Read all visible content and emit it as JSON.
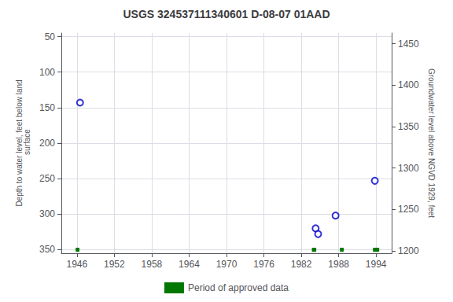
{
  "chart_data": {
    "type": "scatter",
    "title": "USGS 324537111340601 D-08-07 01AAD",
    "ylabel": "Depth to water level, feet below land\n surface",
    "y2label": "Groundwater level above NGVD 1929, feet",
    "xlim": [
      1943.5,
      1996.5
    ],
    "xticks": [
      1946,
      1952,
      1958,
      1964,
      1970,
      1976,
      1982,
      1988,
      1994
    ],
    "ylim": [
      355,
      45
    ],
    "yticks": [
      50,
      100,
      150,
      200,
      250,
      300,
      350
    ],
    "y2lim": [
      1197,
      1463
    ],
    "y2ticks": [
      1200,
      1250,
      1300,
      1350,
      1400,
      1450
    ],
    "grid": true,
    "legend": "bottom",
    "series": [
      {
        "type": "scatter",
        "color": "#0000cc",
        "marker": "open_circle",
        "x": [
          1946.5,
          1984.3,
          1984.7,
          1987.5,
          1993.8
        ],
        "values": [
          143,
          320,
          328,
          302,
          253
        ]
      },
      {
        "name": "Period of approved data",
        "type": "bar",
        "orientation": "horizontal",
        "color": "#007700",
        "x": [
          1945.8,
          1983.7,
          1988.2,
          1993.5
        ],
        "width": [
          0.6,
          0.7,
          0.6,
          1.0
        ],
        "values": [
          350,
          350,
          350,
          350
        ]
      }
    ]
  }
}
